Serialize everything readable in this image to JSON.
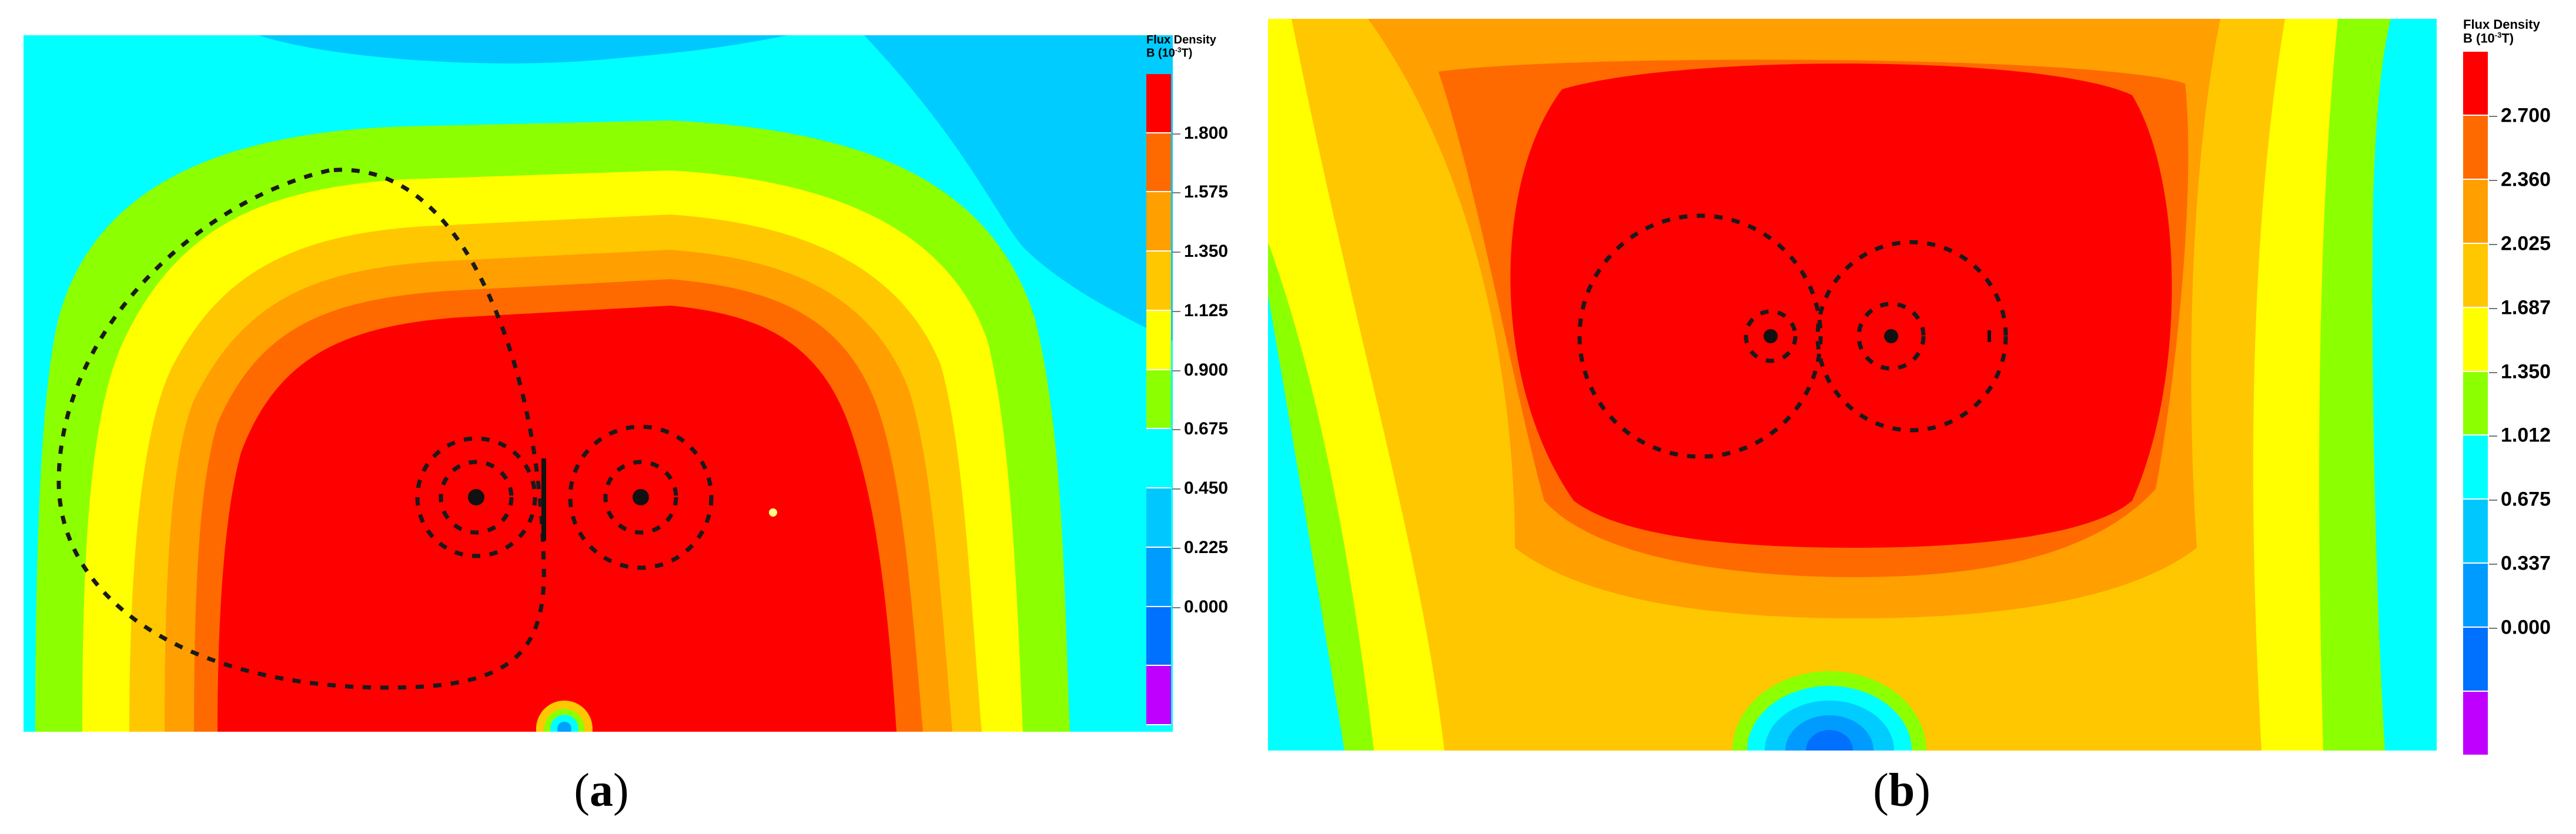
{
  "captions": {
    "a": {
      "open": "(",
      "letter": "a",
      "close": ")"
    },
    "b": {
      "open": "(",
      "letter": "b",
      "close": ")"
    }
  },
  "chart_data": [
    {
      "type": "heatmap",
      "panel": "a",
      "legend": {
        "title_line1": "Flux Density",
        "title_line2": "B (10",
        "exponent": "-3",
        "title_unit": "T)",
        "ticks": [
          "1.800",
          "1.575",
          "1.350",
          "1.125",
          "0.900",
          "0.675",
          "0.450",
          "0.225",
          "0.000"
        ],
        "colors": [
          "#ff0000",
          "#ff6a00",
          "#ff9f00",
          "#ffc700",
          "#ffff00",
          "#8cff00",
          "#00ffff",
          "#00c8ff",
          "#009bff",
          "#0070ff",
          "#c000ff"
        ]
      }
    },
    {
      "type": "heatmap",
      "panel": "b",
      "legend": {
        "title_line1": "Flux Density",
        "title_line2": "B (10",
        "exponent": "-3",
        "title_unit": "T)",
        "ticks": [
          "2.700",
          "2.360",
          "2.025",
          "1.687",
          "1.350",
          "1.012",
          "0.675",
          "0.337",
          "0.000"
        ],
        "colors": [
          "#ff0000",
          "#ff6a00",
          "#ff9f00",
          "#ffc700",
          "#ffff00",
          "#8cff00",
          "#00ffff",
          "#00c8ff",
          "#009bff",
          "#0070ff",
          "#c000ff"
        ]
      }
    }
  ]
}
